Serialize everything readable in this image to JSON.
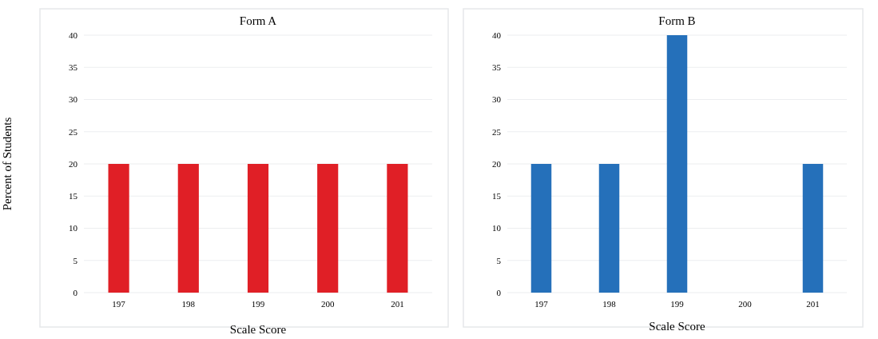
{
  "chart_data": [
    {
      "type": "bar",
      "title": "Form A",
      "xlabel": "Scale Score",
      "ylabel": "Percent of Students",
      "categories": [
        "197",
        "198",
        "199",
        "200",
        "201"
      ],
      "values": [
        20,
        20,
        20,
        20,
        20
      ],
      "color": "#e01f26",
      "ylim": [
        0,
        40
      ],
      "yticks": [
        0,
        5,
        10,
        15,
        20,
        25,
        30,
        35,
        40
      ],
      "grid": "y"
    },
    {
      "type": "bar",
      "title": "Form B",
      "xlabel": "Scale Score",
      "categories": [
        "197",
        "198",
        "199",
        "200",
        "201"
      ],
      "values": [
        20,
        20,
        40,
        0,
        20
      ],
      "color": "#2570ba",
      "ylim": [
        0,
        40
      ],
      "yticks": [
        0,
        5,
        10,
        15,
        20,
        25,
        30,
        35,
        40
      ],
      "grid": "y"
    }
  ]
}
